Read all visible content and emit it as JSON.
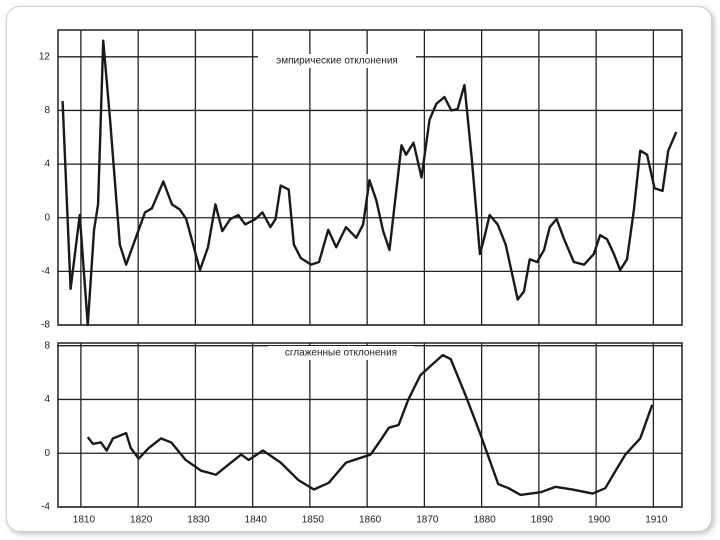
{
  "chart_data": [
    {
      "type": "line",
      "annotation": "эмпирические отклонения",
      "color": "#1a1a1a",
      "grid": true,
      "show_xtick_labels": false,
      "xlim": [
        1806,
        1915
      ],
      "xticks": [
        1810,
        1820,
        1830,
        1840,
        1850,
        1860,
        1870,
        1880,
        1890,
        1900,
        1910
      ],
      "ylim": [
        -8,
        14
      ],
      "yticks": [
        -8,
        -4,
        0,
        4,
        8,
        12
      ],
      "x": [
        1806.8,
        1808.2,
        1809.8,
        1811.2,
        1812.3,
        1813,
        1813.9,
        1815.1,
        1816.8,
        1817.9,
        1819.5,
        1821.2,
        1822.4,
        1824.4,
        1825.9,
        1827.3,
        1828.4,
        1830.8,
        1832.2,
        1833.5,
        1834.7,
        1836.1,
        1837.5,
        1838.7,
        1840.5,
        1841.7,
        1843.1,
        1844,
        1844.9,
        1846.3,
        1847.2,
        1848.4,
        1850.2,
        1851.6,
        1853.2,
        1854.6,
        1856.3,
        1858.1,
        1859.3,
        1860.4,
        1861.6,
        1862.8,
        1863.9,
        1866,
        1866.8,
        1868.1,
        1869.5,
        1870.9,
        1872.1,
        1873.5,
        1874.7,
        1875.8,
        1877,
        1878.3,
        1879.7,
        1880.4,
        1881.4,
        1882.8,
        1884.2,
        1886.3,
        1887.4,
        1888.4,
        1889.7,
        1890.9,
        1891.9,
        1893.1,
        1894.4,
        1896.1,
        1897.9,
        1899.6,
        1900.7,
        1901.9,
        1903.1,
        1904.2,
        1905.4,
        1906.6,
        1907.7,
        1908.9,
        1910.2,
        1911.6,
        1912.6,
        1914
      ],
      "values": [
        8.7,
        -5.3,
        0.2,
        -8,
        -0.9,
        1,
        13.2,
        7.3,
        -2,
        -3.5,
        -1.6,
        0.4,
        0.7,
        2.7,
        1,
        0.6,
        -0.1,
        -3.9,
        -2.2,
        1,
        -1,
        -0.1,
        0.2,
        -0.5,
        -0.1,
        0.4,
        -0.7,
        -0.1,
        2.4,
        2.1,
        -2,
        -3,
        -3.5,
        -3.3,
        -0.9,
        -2.2,
        -0.7,
        -1.5,
        -0.5,
        2.8,
        1.3,
        -1,
        -2.4,
        5.4,
        4.7,
        5.6,
        3,
        7.3,
        8.5,
        9,
        8,
        8.1,
        9.9,
        4.3,
        -2.7,
        -1.6,
        0.2,
        -0.5,
        -2,
        -6.1,
        -5.5,
        -3.1,
        -3.3,
        -2.4,
        -0.7,
        -0.1,
        -1.6,
        -3.3,
        -3.5,
        -2.7,
        -1.3,
        -1.6,
        -2.7,
        -3.9,
        -3.1,
        0.6,
        5,
        4.7,
        2.2,
        2,
        5,
        6.4
      ]
    },
    {
      "type": "line",
      "annotation": "сглаженные отклонения",
      "color": "#1a1a1a",
      "grid": true,
      "show_xtick_labels": true,
      "xlim": [
        1806,
        1915
      ],
      "xticks": [
        1810,
        1820,
        1830,
        1840,
        1850,
        1860,
        1870,
        1880,
        1890,
        1900,
        1910
      ],
      "ylim": [
        -4,
        8.2
      ],
      "yticks": [
        -4,
        0,
        4,
        8
      ],
      "x": [
        1811.2,
        1812.1,
        1813.5,
        1814.5,
        1815.6,
        1817.9,
        1818.7,
        1820.1,
        1821.9,
        1824,
        1825.8,
        1828.3,
        1831,
        1833.6,
        1836.2,
        1838,
        1839.3,
        1841.8,
        1844.9,
        1848,
        1850.7,
        1853.3,
        1856.3,
        1860.6,
        1862.4,
        1863.8,
        1865.5,
        1867.2,
        1869.3,
        1871.1,
        1873.2,
        1874.6,
        1877.2,
        1879.8,
        1882.9,
        1884.7,
        1886.8,
        1890.3,
        1892.9,
        1895.9,
        1899.4,
        1901.6,
        1903.4,
        1905.1,
        1907.7,
        1909.8
      ],
      "values": [
        1.2,
        0.7,
        0.8,
        0.2,
        1.1,
        1.5,
        0.4,
        -0.4,
        0.4,
        1.1,
        0.8,
        -0.5,
        -1.3,
        -1.6,
        -0.7,
        -0.1,
        -0.5,
        0.2,
        -0.7,
        -2,
        -2.7,
        -2.2,
        -0.7,
        -0.1,
        1,
        1.9,
        2.1,
        4,
        5.8,
        6.5,
        7.3,
        7,
        4.3,
        1.4,
        -2.3,
        -2.6,
        -3.1,
        -2.9,
        -2.5,
        -2.7,
        -3,
        -2.6,
        -1.3,
        -0.1,
        1.1,
        3.6
      ]
    }
  ]
}
